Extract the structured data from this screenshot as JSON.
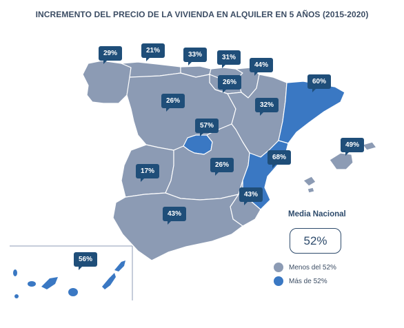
{
  "title": "INCREMENTO DEL PRECIO DE LA VIVIENDA EN ALQUILER EN 5 AÑOS (2015-2020)",
  "colors": {
    "below": "#8c9bb4",
    "above": "#3a78c3",
    "label_bg": "#1f4e79"
  },
  "regions": [
    {
      "name": "Galicia",
      "value": "29%"
    },
    {
      "name": "Asturias",
      "value": "21%"
    },
    {
      "name": "Cantabria",
      "value": "33%"
    },
    {
      "name": "País Vasco",
      "value": "31%"
    },
    {
      "name": "Navarra",
      "value": "44%"
    },
    {
      "name": "La Rioja",
      "value": "26%"
    },
    {
      "name": "Cataluña",
      "value": "60%"
    },
    {
      "name": "Castilla y León",
      "value": "26%"
    },
    {
      "name": "Aragón",
      "value": "32%"
    },
    {
      "name": "Madrid",
      "value": "57%"
    },
    {
      "name": "Baleares",
      "value": "49%"
    },
    {
      "name": "Extremadura",
      "value": "17%"
    },
    {
      "name": "Castilla-La Mancha",
      "value": "26%"
    },
    {
      "name": "Comunidad Valenciana",
      "value": "68%"
    },
    {
      "name": "Murcia",
      "value": "43%"
    },
    {
      "name": "Andalucía",
      "value": "43%"
    },
    {
      "name": "Canarias",
      "value": "56%"
    }
  ],
  "national": {
    "label": "Media Nacional",
    "value": "52%"
  },
  "legend": [
    {
      "label": "Menos del 52%",
      "color": "#8c9bb4"
    },
    {
      "label": "Más de 52%",
      "color": "#3a78c3"
    }
  ]
}
